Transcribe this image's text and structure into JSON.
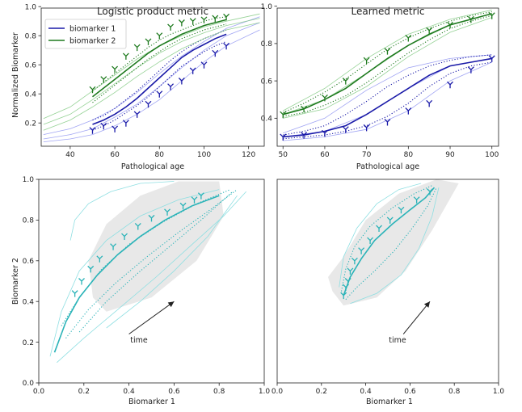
{
  "colors": {
    "biomarker1": "#1a1aa8",
    "biomarker1_light": "#8a8ff0",
    "biomarker2": "#1e7a1e",
    "biomarker2_light": "#7cc77c",
    "traj": "#2ab3b8",
    "traj_light": "#8fdfe2",
    "shade": "#e8e8e8",
    "axis": "#222222"
  },
  "chart_data": [
    {
      "type": "line",
      "title": "Logistic product metric",
      "xlabel": "Pathological age",
      "ylabel": "Normalized Biomarker",
      "xlim": [
        27,
        127
      ],
      "ylim": [
        0.04,
        0.99
      ],
      "xticks": [
        40,
        60,
        80,
        100,
        120
      ],
      "yticks": [
        0.2,
        0.4,
        0.6,
        0.8,
        1.0
      ],
      "ytick_labels": [
        "0.2",
        "0.4",
        "0.6",
        "0.8",
        "1.0"
      ],
      "legend": {
        "position": "top-left",
        "entries": [
          "biomarker 1",
          "biomarker 2"
        ]
      },
      "series": [
        {
          "name": "biomarker 1",
          "color_key": "biomarker1",
          "x": [
            50,
            55,
            60,
            65,
            70,
            75,
            80,
            85,
            90,
            95,
            100,
            105,
            110
          ],
          "mean": [
            0.19,
            0.22,
            0.26,
            0.31,
            0.37,
            0.44,
            0.51,
            0.58,
            0.65,
            0.7,
            0.74,
            0.78,
            0.81
          ],
          "dots_upper": [
            0.22,
            0.25,
            0.3,
            0.36,
            0.42,
            0.49,
            0.56,
            0.63,
            0.69,
            0.74,
            0.78,
            0.81,
            0.84
          ],
          "dots_lower": [
            0.15,
            0.18,
            0.22,
            0.27,
            0.32,
            0.38,
            0.45,
            0.52,
            0.59,
            0.64,
            0.69,
            0.73,
            0.76
          ],
          "band_x": [
            28,
            40,
            50,
            60,
            70,
            80,
            90,
            100,
            110,
            125
          ],
          "band_mid": [
            0.09,
            0.12,
            0.16,
            0.24,
            0.33,
            0.45,
            0.58,
            0.7,
            0.8,
            0.89
          ],
          "band_upper": [
            0.12,
            0.16,
            0.22,
            0.3,
            0.41,
            0.54,
            0.66,
            0.76,
            0.85,
            0.93
          ],
          "band_lower": [
            0.07,
            0.09,
            0.12,
            0.18,
            0.26,
            0.36,
            0.49,
            0.62,
            0.73,
            0.84
          ],
          "markers_x": [
            50,
            55,
            60,
            65,
            70,
            75,
            80,
            85,
            90,
            95,
            100,
            105,
            110
          ],
          "markers_y": [
            0.15,
            0.18,
            0.16,
            0.2,
            0.26,
            0.33,
            0.4,
            0.45,
            0.49,
            0.56,
            0.6,
            0.68,
            0.73
          ]
        },
        {
          "name": "biomarker 2",
          "color_key": "biomarker2",
          "x": [
            50,
            55,
            60,
            65,
            70,
            75,
            80,
            85,
            90,
            95,
            100,
            105,
            110
          ],
          "mean": [
            0.38,
            0.44,
            0.5,
            0.56,
            0.62,
            0.68,
            0.73,
            0.77,
            0.81,
            0.84,
            0.87,
            0.89,
            0.91
          ],
          "dots_upper": [
            0.42,
            0.48,
            0.54,
            0.6,
            0.66,
            0.72,
            0.77,
            0.81,
            0.84,
            0.87,
            0.9,
            0.92,
            0.93
          ],
          "dots_lower": [
            0.34,
            0.4,
            0.46,
            0.52,
            0.58,
            0.64,
            0.69,
            0.74,
            0.78,
            0.81,
            0.84,
            0.86,
            0.88
          ],
          "band_x": [
            28,
            40,
            50,
            60,
            70,
            80,
            90,
            100,
            110,
            125
          ],
          "band_mid": [
            0.19,
            0.26,
            0.36,
            0.47,
            0.58,
            0.68,
            0.76,
            0.82,
            0.87,
            0.92
          ],
          "band_upper": [
            0.23,
            0.31,
            0.42,
            0.53,
            0.64,
            0.73,
            0.8,
            0.86,
            0.9,
            0.95
          ],
          "band_lower": [
            0.15,
            0.22,
            0.31,
            0.41,
            0.52,
            0.62,
            0.71,
            0.78,
            0.84,
            0.89
          ],
          "markers_x": [
            50,
            55,
            60,
            65,
            70,
            75,
            80,
            85,
            90,
            95,
            100,
            105,
            110
          ],
          "markers_y": [
            0.43,
            0.5,
            0.57,
            0.66,
            0.72,
            0.76,
            0.8,
            0.86,
            0.89,
            0.9,
            0.91,
            0.92,
            0.93
          ]
        }
      ]
    },
    {
      "type": "line",
      "title": "Learned metric",
      "xlabel": "Pathological age",
      "ylabel": "",
      "xlim": [
        48.6,
        101.6
      ],
      "ylim": [
        0.25,
        0.99
      ],
      "xticks": [
        50,
        60,
        70,
        80,
        90,
        100
      ],
      "yticks": [
        0.4,
        0.6,
        0.8,
        1.0
      ],
      "ytick_labels": [
        "0.4",
        "0.6",
        "0.8",
        "1.0"
      ],
      "series": [
        {
          "name": "biomarker 1",
          "color_key": "biomarker1",
          "x": [
            50,
            55,
            60,
            65,
            70,
            75,
            80,
            85,
            90,
            95,
            100
          ],
          "mean": [
            0.3,
            0.31,
            0.33,
            0.36,
            0.42,
            0.49,
            0.56,
            0.63,
            0.68,
            0.7,
            0.72
          ],
          "dots_upper": [
            0.31,
            0.33,
            0.36,
            0.42,
            0.49,
            0.57,
            0.63,
            0.68,
            0.71,
            0.73,
            0.74
          ],
          "dots_lower": [
            0.29,
            0.3,
            0.31,
            0.33,
            0.36,
            0.41,
            0.48,
            0.57,
            0.64,
            0.68,
            0.7
          ],
          "band_x": [
            50,
            60,
            70,
            80,
            90,
            100
          ],
          "band_mid": [
            0.3,
            0.33,
            0.42,
            0.56,
            0.68,
            0.72
          ],
          "band_upper": [
            0.32,
            0.4,
            0.55,
            0.67,
            0.72,
            0.74
          ],
          "band_lower": [
            0.28,
            0.3,
            0.34,
            0.44,
            0.6,
            0.7
          ],
          "markers_x": [
            50,
            55,
            60,
            65,
            70,
            75,
            80,
            85,
            90,
            95,
            100
          ],
          "markers_y": [
            0.3,
            0.31,
            0.32,
            0.34,
            0.35,
            0.38,
            0.44,
            0.48,
            0.58,
            0.66,
            0.72
          ]
        },
        {
          "name": "biomarker 2",
          "color_key": "biomarker2",
          "x": [
            50,
            55,
            60,
            65,
            70,
            75,
            80,
            85,
            90,
            95,
            100
          ],
          "mean": [
            0.42,
            0.45,
            0.5,
            0.56,
            0.64,
            0.72,
            0.79,
            0.85,
            0.9,
            0.93,
            0.96
          ],
          "dots_upper": [
            0.43,
            0.48,
            0.54,
            0.61,
            0.69,
            0.77,
            0.83,
            0.88,
            0.92,
            0.95,
            0.97
          ],
          "dots_lower": [
            0.41,
            0.43,
            0.47,
            0.52,
            0.59,
            0.67,
            0.75,
            0.82,
            0.88,
            0.92,
            0.95
          ],
          "band_x": [
            50,
            60,
            70,
            80,
            90,
            100
          ],
          "band_mid": [
            0.42,
            0.5,
            0.64,
            0.79,
            0.9,
            0.96
          ],
          "band_upper": [
            0.44,
            0.56,
            0.72,
            0.85,
            0.93,
            0.98
          ],
          "band_lower": [
            0.4,
            0.45,
            0.57,
            0.73,
            0.86,
            0.94
          ],
          "markers_x": [
            50,
            55,
            60,
            65,
            70,
            75,
            80,
            85,
            90,
            95,
            100
          ],
          "markers_y": [
            0.42,
            0.45,
            0.51,
            0.6,
            0.71,
            0.76,
            0.83,
            0.87,
            0.9,
            0.93,
            0.95
          ]
        }
      ]
    },
    {
      "type": "line",
      "title": "",
      "xlabel": "Biomarker 1",
      "ylabel": "Biomarker 2",
      "xlim": [
        0.0,
        1.0
      ],
      "ylim": [
        0.0,
        1.0
      ],
      "xticks": [
        0.0,
        0.2,
        0.4,
        0.6,
        0.8,
        1.0
      ],
      "yticks": [
        0.0,
        0.2,
        0.4,
        0.6,
        0.8,
        1.0
      ],
      "annotation": {
        "text": "time",
        "text_x": 0.18,
        "text_y": 0.21,
        "arrow_from": [
          0.4,
          0.24
        ],
        "arrow_to": [
          0.6,
          0.4
        ]
      },
      "shaded_region": [
        [
          0.3,
          0.35
        ],
        [
          0.5,
          0.42
        ],
        [
          0.7,
          0.6
        ],
        [
          0.82,
          0.82
        ],
        [
          0.8,
          0.99
        ],
        [
          0.62,
          0.99
        ],
        [
          0.45,
          0.92
        ],
        [
          0.3,
          0.78
        ],
        [
          0.22,
          0.6
        ],
        [
          0.24,
          0.42
        ]
      ],
      "mean_curve": {
        "x": [
          0.07,
          0.12,
          0.18,
          0.26,
          0.35,
          0.45,
          0.56,
          0.68,
          0.8
        ],
        "y": [
          0.15,
          0.3,
          0.42,
          0.53,
          0.63,
          0.72,
          0.8,
          0.87,
          0.92
        ]
      },
      "dotted_curves": [
        {
          "x": [
            0.1,
            0.18,
            0.28,
            0.4,
            0.55,
            0.7,
            0.85
          ],
          "y": [
            0.28,
            0.42,
            0.56,
            0.68,
            0.79,
            0.88,
            0.95
          ]
        },
        {
          "x": [
            0.12,
            0.22,
            0.34,
            0.48,
            0.62,
            0.76,
            0.88
          ],
          "y": [
            0.22,
            0.36,
            0.49,
            0.62,
            0.74,
            0.85,
            0.95
          ]
        },
        {
          "x": [
            0.18,
            0.3,
            0.44,
            0.58,
            0.72,
            0.86
          ],
          "y": [
            0.25,
            0.4,
            0.54,
            0.67,
            0.8,
            0.94
          ]
        }
      ],
      "thin_curves": [
        {
          "x": [
            0.05,
            0.1,
            0.18,
            0.3,
            0.45,
            0.62,
            0.8
          ],
          "y": [
            0.13,
            0.35,
            0.55,
            0.7,
            0.82,
            0.9,
            0.95
          ]
        },
        {
          "x": [
            0.08,
            0.2,
            0.35,
            0.52,
            0.68,
            0.82,
            0.92
          ],
          "y": [
            0.1,
            0.22,
            0.36,
            0.52,
            0.68,
            0.82,
            0.94
          ]
        },
        {
          "x": [
            0.14,
            0.16,
            0.22,
            0.32,
            0.45,
            0.6
          ],
          "y": [
            0.7,
            0.8,
            0.88,
            0.94,
            0.98,
            0.99
          ]
        },
        {
          "x": [
            0.3,
            0.45,
            0.6,
            0.75,
            0.88
          ],
          "y": [
            0.27,
            0.4,
            0.55,
            0.72,
            0.92
          ]
        }
      ],
      "markers": {
        "x": [
          0.16,
          0.19,
          0.23,
          0.27,
          0.33,
          0.38,
          0.44,
          0.5,
          0.57,
          0.64,
          0.69,
          0.72
        ],
        "y": [
          0.44,
          0.5,
          0.56,
          0.61,
          0.67,
          0.72,
          0.77,
          0.81,
          0.84,
          0.87,
          0.9,
          0.92
        ]
      }
    },
    {
      "type": "line",
      "title": "",
      "xlabel": "Biomarker 1",
      "ylabel": "",
      "xlim": [
        0.0,
        1.0
      ],
      "ylim": [
        0.0,
        1.0
      ],
      "xticks": [
        0.0,
        0.2,
        0.4,
        0.6,
        0.8,
        1.0
      ],
      "yticks": [],
      "annotation": {
        "text": "time",
        "text_x": 0.5,
        "text_y": 0.21,
        "arrow_from": [
          0.57,
          0.24
        ],
        "arrow_to": [
          0.69,
          0.4
        ]
      },
      "shaded_region": [
        [
          0.25,
          0.45
        ],
        [
          0.3,
          0.38
        ],
        [
          0.45,
          0.42
        ],
        [
          0.58,
          0.55
        ],
        [
          0.7,
          0.75
        ],
        [
          0.82,
          0.98
        ],
        [
          0.72,
          1.0
        ],
        [
          0.55,
          0.93
        ],
        [
          0.4,
          0.8
        ],
        [
          0.3,
          0.62
        ],
        [
          0.23,
          0.52
        ]
      ],
      "mean_curve": {
        "x": [
          0.3,
          0.33,
          0.38,
          0.44,
          0.52,
          0.6,
          0.67,
          0.71
        ],
        "y": [
          0.43,
          0.52,
          0.61,
          0.7,
          0.78,
          0.85,
          0.91,
          0.96
        ]
      },
      "dotted_curves": [
        {
          "x": [
            0.29,
            0.31,
            0.35,
            0.42,
            0.52,
            0.62,
            0.7
          ],
          "y": [
            0.45,
            0.56,
            0.67,
            0.77,
            0.86,
            0.93,
            0.97
          ]
        },
        {
          "x": [
            0.31,
            0.36,
            0.44,
            0.53,
            0.61,
            0.68,
            0.72
          ],
          "y": [
            0.41,
            0.47,
            0.55,
            0.65,
            0.76,
            0.87,
            0.96
          ]
        }
      ],
      "thin_curves": [
        {
          "x": [
            0.28,
            0.3,
            0.36,
            0.45,
            0.55,
            0.65
          ],
          "y": [
            0.47,
            0.62,
            0.76,
            0.88,
            0.95,
            0.98
          ]
        },
        {
          "x": [
            0.33,
            0.45,
            0.56,
            0.64,
            0.7,
            0.73
          ],
          "y": [
            0.39,
            0.44,
            0.53,
            0.66,
            0.82,
            0.96
          ]
        }
      ],
      "markers": {
        "x": [
          0.3,
          0.31,
          0.32,
          0.33,
          0.35,
          0.38,
          0.42,
          0.46,
          0.51,
          0.56,
          0.63,
          0.69
        ],
        "y": [
          0.43,
          0.47,
          0.5,
          0.55,
          0.6,
          0.65,
          0.7,
          0.76,
          0.8,
          0.85,
          0.9,
          0.94
        ]
      }
    }
  ]
}
